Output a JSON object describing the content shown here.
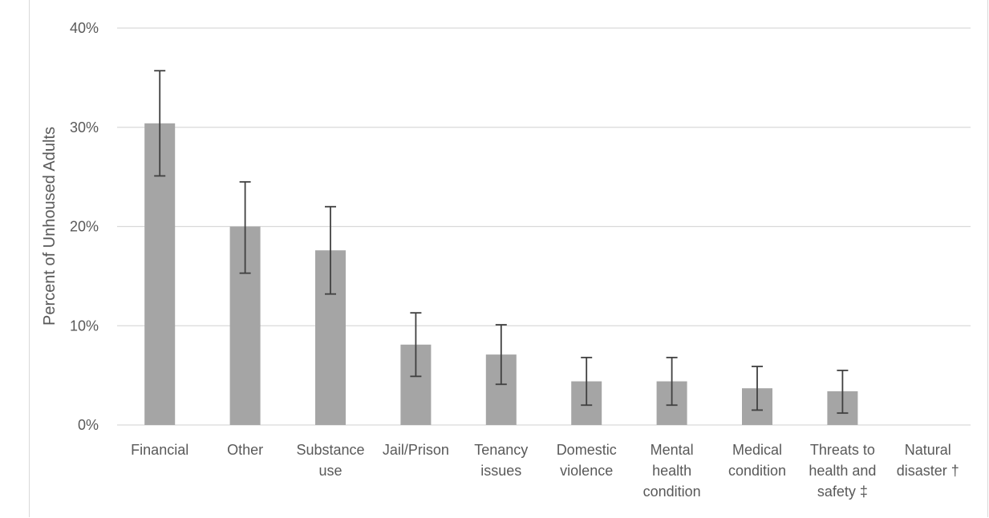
{
  "chart_data": {
    "type": "bar",
    "title": "",
    "xlabel": "",
    "ylabel": "Percent of Unhoused Adults",
    "ylim": [
      0,
      40
    ],
    "yticks": [
      0,
      10,
      20,
      30,
      40
    ],
    "ytick_labels": [
      "0%",
      "10%",
      "20%",
      "30%",
      "40%"
    ],
    "grid": true,
    "legend": "none",
    "categories": [
      "Financial",
      "Other",
      "Substance use",
      "Jail/Prison",
      "Tenancy issues",
      "Domestic violence",
      "Mental health condition",
      "Medical condition",
      "Threats to health and safety ‡",
      "Natural disaster †"
    ],
    "category_label_lines": [
      [
        "Financial"
      ],
      [
        "Other"
      ],
      [
        "Substance",
        "use"
      ],
      [
        "Jail/Prison"
      ],
      [
        "Tenancy",
        "issues"
      ],
      [
        "Domestic",
        "violence"
      ],
      [
        "Mental",
        "health",
        "condition"
      ],
      [
        "Medical",
        "condition"
      ],
      [
        "Threats to",
        "health and",
        "safety ‡"
      ],
      [
        "Natural",
        "disaster  †"
      ]
    ],
    "values": [
      30.4,
      20.0,
      17.6,
      8.1,
      7.1,
      4.4,
      4.4,
      3.7,
      3.4,
      null
    ],
    "error_low": [
      25.1,
      15.3,
      13.2,
      4.9,
      4.1,
      2.0,
      2.0,
      1.5,
      1.2,
      null
    ],
    "error_high": [
      35.7,
      24.5,
      22.0,
      11.3,
      10.1,
      6.8,
      6.8,
      5.9,
      5.5,
      null
    ],
    "colors": {
      "bar": "#a5a5a5",
      "error_bar": "#404040",
      "grid": "#d9d9d9",
      "text": "#595959"
    }
  }
}
